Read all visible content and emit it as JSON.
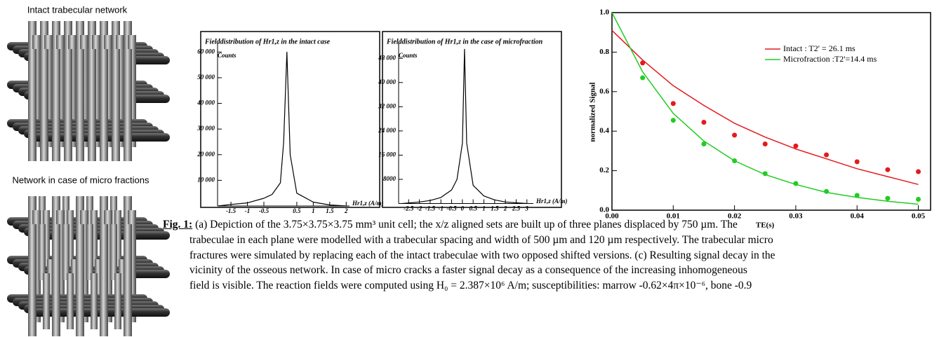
{
  "images": [
    {
      "label": "Intact trabecular network"
    },
    {
      "label": "Network in case of micro fractions"
    }
  ],
  "chart_data": [
    {
      "type": "line",
      "title": "Fielddistribution  of  Hr1,z  in the intact case",
      "ylabel": "Counts",
      "xlabel": "Hr1,z (A/m)",
      "x": [
        -1.9,
        -1.5,
        -1,
        -0.5,
        -0.25,
        0,
        0.1,
        0.2,
        0.3,
        0.5,
        1,
        1.5,
        2
      ],
      "series": [
        {
          "color": "#000000",
          "values": [
            0,
            600,
            1200,
            3000,
            4500,
            9000,
            25000,
            60000,
            20000,
            5000,
            1500,
            400,
            0
          ]
        }
      ],
      "xlim": [
        -1.8,
        2.1
      ],
      "ylim": [
        0,
        62000
      ],
      "xticks": [
        -1.5,
        -1,
        -0.5,
        0.5,
        1,
        1.5,
        2
      ],
      "yticks": [
        {
          "value": 10000,
          "label": "10 000"
        },
        {
          "value": 20000,
          "label": "20 000"
        },
        {
          "value": 30000,
          "label": "30 000"
        },
        {
          "value": 40000,
          "label": "40 000"
        },
        {
          "value": 50000,
          "label": "50 000"
        },
        {
          "value": 60000,
          "label": "60 000"
        }
      ]
    },
    {
      "type": "line",
      "title": "Fielddistribution  of  Hr1,z  in the case  of microfraction",
      "ylabel": "Counts",
      "xlabel": "Hr1,z (A/m)",
      "x": [
        -2.8,
        -2,
        -1.5,
        -1,
        -0.5,
        -0.25,
        0,
        0.1,
        0.2,
        0.5,
        1,
        1.5,
        2,
        3
      ],
      "series": [
        {
          "color": "#000000",
          "values": [
            0,
            500,
            1000,
            2000,
            4500,
            8000,
            20000,
            51000,
            20000,
            6000,
            2500,
            1200,
            500,
            0
          ]
        }
      ],
      "xlim": [
        -2.9,
        3.3
      ],
      "ylim": [
        0,
        52000
      ],
      "xticks": [
        -2.5,
        -2,
        -1.5,
        -1,
        -0.5,
        0,
        0.5,
        1,
        1.5,
        2,
        2.5,
        3
      ],
      "yticks": [
        8000,
        {
          "value": 16000,
          "label": "16 000"
        },
        {
          "value": 24000,
          "label": "24 000"
        },
        {
          "value": 32000,
          "label": "32 000"
        },
        {
          "value": 40000,
          "label": "40 000"
        },
        {
          "value": 48000,
          "label": "48 000"
        }
      ]
    },
    {
      "type": "line",
      "ylabel": "normalized  Signal",
      "xlabel": "TE(s)",
      "x": [
        0,
        0.005,
        0.01,
        0.015,
        0.02,
        0.025,
        0.03,
        0.035,
        0.04,
        0.045,
        0.05
      ],
      "series": [
        {
          "name": "Intact : T2' = 26.1  ms",
          "color": "#e41a1c",
          "style": "line",
          "values": [
            0.91,
            0.76,
            0.63,
            0.53,
            0.44,
            0.37,
            0.31,
            0.26,
            0.21,
            0.17,
            0.13
          ]
        },
        {
          "name": "Microfraction :T2'=14.4 ms",
          "color": "#22cc22",
          "style": "line",
          "values": [
            1.0,
            0.7,
            0.49,
            0.35,
            0.25,
            0.18,
            0.13,
            0.09,
            0.065,
            0.045,
            0.03
          ]
        },
        {
          "color": "#e41a1c",
          "style": "markers",
          "values": [
            null,
            0.745,
            0.54,
            0.445,
            0.38,
            0.335,
            0.325,
            0.28,
            0.245,
            0.205,
            0.195
          ]
        },
        {
          "color": "#22cc22",
          "style": "markers",
          "values": [
            null,
            0.67,
            0.455,
            0.335,
            0.25,
            0.185,
            0.135,
            0.095,
            0.075,
            0.06,
            0.055
          ]
        }
      ],
      "xlim": [
        0,
        0.052
      ],
      "ylim": [
        0,
        1
      ],
      "xticks": [
        {
          "value": 0,
          "label": "0.00"
        },
        0.01,
        0.02,
        0.03,
        0.04,
        {
          "value": 0.05,
          "label": "0.05"
        }
      ],
      "yticks": [
        {
          "value": 0,
          "label": "0.0"
        },
        0.2,
        0.4,
        0.6,
        0.8,
        {
          "value": 1,
          "label": "1.0"
        }
      ]
    }
  ],
  "caption": {
    "label": "Fig. 1:",
    "lines": [
      "(a) Depiction of the 3.75×3.75×3.75 mm³ unit cell; the x/z aligned sets are built up of three planes displaced by 750 µm. The",
      "trabeculae in each plane were modelled with a trabecular spacing and width of 500 µm and 120 µm respectively. The trabecular micro",
      "fractures were simulated by replacing each of the intact trabeculae with two opposed shifted versions. (c) Resulting signal decay in the",
      "vicinity of the osseous network. In case of micro cracks a faster signal decay as a consequence of the increasing inhomogeneous",
      "field is visible. The reaction fields were computed using H₀ = 2.387×10⁶ A/m; susceptibilities: marrow -0.62×4π×10⁻⁶, bone -0.9"
    ]
  }
}
